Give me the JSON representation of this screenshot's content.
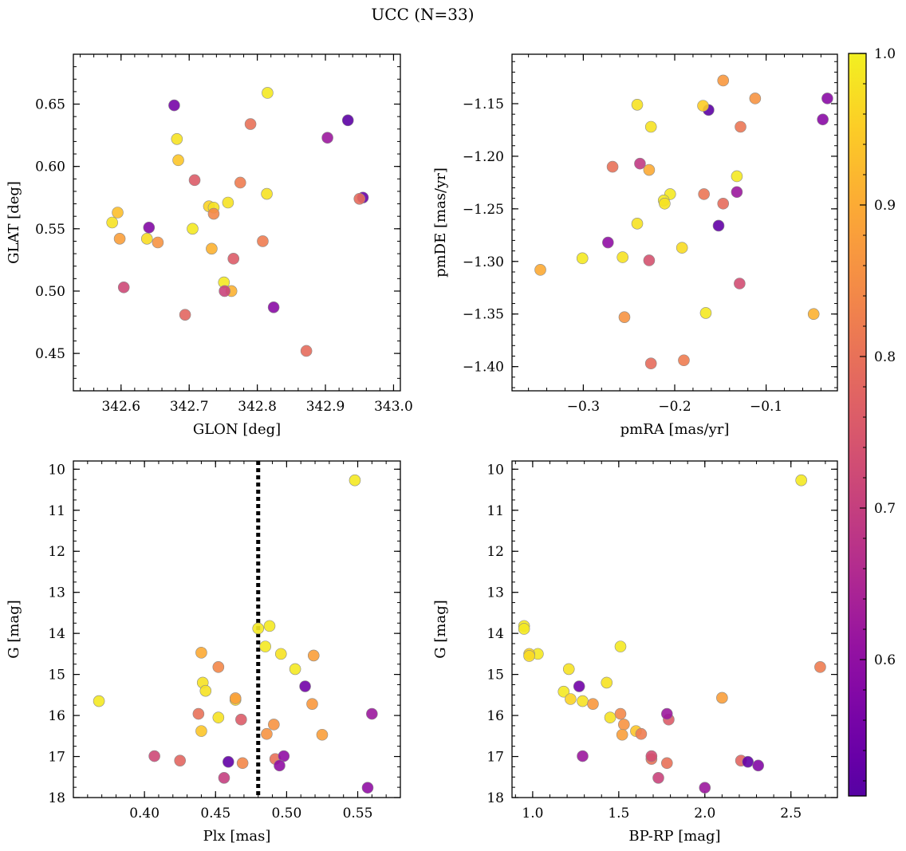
{
  "figure": {
    "title": "UCC (N=33)"
  },
  "colorbar": {
    "range": [
      0.51,
      1.0
    ],
    "ticks": [
      0.6,
      0.7,
      0.8,
      0.9,
      1.0
    ],
    "tick_labels": [
      "0.6",
      "0.7",
      "0.8",
      "0.9",
      "1.0"
    ],
    "colormap": "plasma",
    "colormap_range": [
      0.15,
      0.98
    ]
  },
  "chart_data": [
    {
      "type": "scatter",
      "id": "glon-glat",
      "xlabel": "GLON [deg]",
      "ylabel": "GLAT [deg]",
      "xlim": [
        342.53,
        343.01
      ],
      "ylim": [
        0.42,
        0.69
      ],
      "y_inverted": false,
      "xticks": [
        342.6,
        342.7,
        342.8,
        342.9,
        343.0
      ],
      "xtick_labels": [
        "342.6",
        "342.7",
        "342.8",
        "342.9",
        "343.0"
      ],
      "yticks": [
        0.45,
        0.5,
        0.55,
        0.6,
        0.65
      ],
      "ytick_labels": [
        "0.45",
        "0.50",
        "0.55",
        "0.60",
        "0.65"
      ],
      "grid": false,
      "points": [
        {
          "x": 342.678,
          "y": 0.649,
          "c": 0.56
        },
        {
          "x": 342.933,
          "y": 0.637,
          "c": 0.52
        },
        {
          "x": 342.955,
          "y": 0.575,
          "c": 0.54
        },
        {
          "x": 342.903,
          "y": 0.623,
          "c": 0.62
        },
        {
          "x": 342.641,
          "y": 0.551,
          "c": 0.58
        },
        {
          "x": 342.824,
          "y": 0.487,
          "c": 0.59
        },
        {
          "x": 342.815,
          "y": 0.659,
          "c": 0.99
        },
        {
          "x": 342.682,
          "y": 0.622,
          "c": 0.98
        },
        {
          "x": 342.684,
          "y": 0.605,
          "c": 0.94
        },
        {
          "x": 342.814,
          "y": 0.578,
          "c": 0.98
        },
        {
          "x": 342.587,
          "y": 0.555,
          "c": 0.98
        },
        {
          "x": 342.595,
          "y": 0.563,
          "c": 0.93
        },
        {
          "x": 342.638,
          "y": 0.542,
          "c": 0.97
        },
        {
          "x": 342.705,
          "y": 0.55,
          "c": 0.99
        },
        {
          "x": 342.729,
          "y": 0.568,
          "c": 0.96
        },
        {
          "x": 342.736,
          "y": 0.567,
          "c": 0.98
        },
        {
          "x": 342.757,
          "y": 0.571,
          "c": 0.98
        },
        {
          "x": 342.751,
          "y": 0.507,
          "c": 0.99
        },
        {
          "x": 342.598,
          "y": 0.542,
          "c": 0.88
        },
        {
          "x": 342.654,
          "y": 0.539,
          "c": 0.86
        },
        {
          "x": 342.733,
          "y": 0.534,
          "c": 0.91
        },
        {
          "x": 342.762,
          "y": 0.5,
          "c": 0.91
        },
        {
          "x": 342.736,
          "y": 0.562,
          "c": 0.84
        },
        {
          "x": 342.775,
          "y": 0.587,
          "c": 0.82
        },
        {
          "x": 342.808,
          "y": 0.54,
          "c": 0.82
        },
        {
          "x": 342.79,
          "y": 0.634,
          "c": 0.8
        },
        {
          "x": 342.95,
          "y": 0.574,
          "c": 0.79
        },
        {
          "x": 342.872,
          "y": 0.452,
          "c": 0.79
        },
        {
          "x": 342.694,
          "y": 0.481,
          "c": 0.78
        },
        {
          "x": 342.708,
          "y": 0.589,
          "c": 0.76
        },
        {
          "x": 342.765,
          "y": 0.526,
          "c": 0.76
        },
        {
          "x": 342.604,
          "y": 0.503,
          "c": 0.72
        },
        {
          "x": 342.752,
          "y": 0.5,
          "c": 0.71
        }
      ]
    },
    {
      "type": "scatter",
      "id": "pmra-pmde",
      "xlabel": "pmRA [mas/yr]",
      "ylabel": "pmDE [mas/yr]",
      "xlim": [
        -0.378,
        -0.022
      ],
      "ylim": [
        -1.423,
        -1.103
      ],
      "y_inverted": false,
      "xticks": [
        -0.3,
        -0.2,
        -0.1
      ],
      "xtick_labels": [
        "−0.3",
        "−0.2",
        "−0.1"
      ],
      "yticks": [
        -1.4,
        -1.35,
        -1.3,
        -1.25,
        -1.2,
        -1.15
      ],
      "ytick_labels": [
        "−1.40",
        "−1.35",
        "−1.30",
        "−1.25",
        "−1.20",
        "−1.15"
      ],
      "grid": false,
      "points": [
        {
          "x": -0.163,
          "y": -1.156,
          "c": 0.52
        },
        {
          "x": -0.152,
          "y": -1.266,
          "c": 0.53
        },
        {
          "x": -0.033,
          "y": -1.145,
          "c": 0.59
        },
        {
          "x": -0.038,
          "y": -1.165,
          "c": 0.59
        },
        {
          "x": -0.132,
          "y": -1.234,
          "c": 0.62
        },
        {
          "x": -0.273,
          "y": -1.282,
          "c": 0.6
        },
        {
          "x": -0.241,
          "y": -1.151,
          "c": 0.98
        },
        {
          "x": -0.226,
          "y": -1.172,
          "c": 0.98
        },
        {
          "x": -0.169,
          "y": -1.152,
          "c": 0.95
        },
        {
          "x": -0.132,
          "y": -1.219,
          "c": 0.99
        },
        {
          "x": -0.205,
          "y": -1.236,
          "c": 0.99
        },
        {
          "x": -0.212,
          "y": -1.242,
          "c": 0.99
        },
        {
          "x": -0.211,
          "y": -1.245,
          "c": 0.98
        },
        {
          "x": -0.241,
          "y": -1.264,
          "c": 0.98
        },
        {
          "x": -0.301,
          "y": -1.297,
          "c": 0.99
        },
        {
          "x": -0.257,
          "y": -1.296,
          "c": 0.98
        },
        {
          "x": -0.192,
          "y": -1.287,
          "c": 0.97
        },
        {
          "x": -0.166,
          "y": -1.349,
          "c": 0.99
        },
        {
          "x": -0.347,
          "y": -1.308,
          "c": 0.9
        },
        {
          "x": -0.228,
          "y": -1.213,
          "c": 0.9
        },
        {
          "x": -0.147,
          "y": -1.128,
          "c": 0.87
        },
        {
          "x": -0.112,
          "y": -1.145,
          "c": 0.86
        },
        {
          "x": -0.048,
          "y": -1.35,
          "c": 0.91
        },
        {
          "x": -0.255,
          "y": -1.353,
          "c": 0.86
        },
        {
          "x": -0.268,
          "y": -1.21,
          "c": 0.8
        },
        {
          "x": -0.168,
          "y": -1.236,
          "c": 0.81
        },
        {
          "x": -0.147,
          "y": -1.245,
          "c": 0.79
        },
        {
          "x": -0.128,
          "y": -1.172,
          "c": 0.81
        },
        {
          "x": -0.19,
          "y": -1.394,
          "c": 0.82
        },
        {
          "x": -0.226,
          "y": -1.397,
          "c": 0.79
        },
        {
          "x": -0.228,
          "y": -1.299,
          "c": 0.74
        },
        {
          "x": -0.129,
          "y": -1.321,
          "c": 0.73
        },
        {
          "x": -0.238,
          "y": -1.207,
          "c": 0.69
        }
      ]
    },
    {
      "type": "scatter",
      "id": "plx-g",
      "xlabel": "Plx [mas]",
      "ylabel": "G [mag]",
      "xlim": [
        0.35,
        0.58
      ],
      "ylim": [
        18.0,
        9.8
      ],
      "y_inverted": true,
      "xticks": [
        0.4,
        0.45,
        0.5,
        0.55
      ],
      "xtick_labels": [
        "0.40",
        "0.45",
        "0.50",
        "0.55"
      ],
      "yticks": [
        10,
        11,
        12,
        13,
        14,
        15,
        16,
        17,
        18
      ],
      "ytick_labels": [
        "10",
        "11",
        "12",
        "13",
        "14",
        "15",
        "16",
        "17",
        "18"
      ],
      "grid": false,
      "reference_line": {
        "x": 0.48,
        "style": "dotted",
        "color": "#000000"
      },
      "points": [
        {
          "x": 0.548,
          "y": 10.27,
          "c": 0.99
        },
        {
          "x": 0.368,
          "y": 15.65,
          "c": 0.99
        },
        {
          "x": 0.48,
          "y": 13.88,
          "c": 0.99
        },
        {
          "x": 0.488,
          "y": 13.82,
          "c": 0.99
        },
        {
          "x": 0.485,
          "y": 14.32,
          "c": 0.99
        },
        {
          "x": 0.496,
          "y": 14.5,
          "c": 0.98
        },
        {
          "x": 0.506,
          "y": 14.87,
          "c": 0.99
        },
        {
          "x": 0.441,
          "y": 15.2,
          "c": 0.98
        },
        {
          "x": 0.443,
          "y": 15.4,
          "c": 0.98
        },
        {
          "x": 0.452,
          "y": 16.05,
          "c": 0.98
        },
        {
          "x": 0.464,
          "y": 15.62,
          "c": 0.96
        },
        {
          "x": 0.44,
          "y": 16.38,
          "c": 0.94
        },
        {
          "x": 0.44,
          "y": 14.47,
          "c": 0.9
        },
        {
          "x": 0.464,
          "y": 15.58,
          "c": 0.88
        },
        {
          "x": 0.519,
          "y": 14.54,
          "c": 0.88
        },
        {
          "x": 0.525,
          "y": 16.47,
          "c": 0.88
        },
        {
          "x": 0.518,
          "y": 15.72,
          "c": 0.87
        },
        {
          "x": 0.452,
          "y": 14.82,
          "c": 0.84
        },
        {
          "x": 0.491,
          "y": 16.22,
          "c": 0.86
        },
        {
          "x": 0.486,
          "y": 16.45,
          "c": 0.86
        },
        {
          "x": 0.438,
          "y": 15.96,
          "c": 0.8
        },
        {
          "x": 0.469,
          "y": 17.16,
          "c": 0.84
        },
        {
          "x": 0.492,
          "y": 17.06,
          "c": 0.8
        },
        {
          "x": 0.425,
          "y": 17.1,
          "c": 0.78
        },
        {
          "x": 0.468,
          "y": 16.1,
          "c": 0.76
        },
        {
          "x": 0.407,
          "y": 16.99,
          "c": 0.72
        },
        {
          "x": 0.456,
          "y": 17.52,
          "c": 0.7
        },
        {
          "x": 0.513,
          "y": 15.29,
          "c": 0.55
        },
        {
          "x": 0.459,
          "y": 17.13,
          "c": 0.53
        },
        {
          "x": 0.498,
          "y": 16.99,
          "c": 0.6
        },
        {
          "x": 0.495,
          "y": 17.22,
          "c": 0.6
        },
        {
          "x": 0.56,
          "y": 15.96,
          "c": 0.62
        },
        {
          "x": 0.557,
          "y": 17.76,
          "c": 0.6
        }
      ]
    },
    {
      "type": "scatter",
      "id": "bprp-g",
      "xlabel": "BP-RP [mag]",
      "ylabel": "G [mag]",
      "xlim": [
        0.88,
        2.77
      ],
      "ylim": [
        18.0,
        9.8
      ],
      "y_inverted": true,
      "xticks": [
        1.0,
        1.5,
        2.0,
        2.5
      ],
      "xtick_labels": [
        "1.0",
        "1.5",
        "2.0",
        "2.5"
      ],
      "yticks": [
        10,
        11,
        12,
        13,
        14,
        15,
        16,
        17,
        18
      ],
      "ytick_labels": [
        "10",
        "11",
        "12",
        "13",
        "14",
        "15",
        "16",
        "17",
        "18"
      ],
      "grid": false,
      "points": [
        {
          "x": 2.56,
          "y": 10.27,
          "c": 0.99
        },
        {
          "x": 0.95,
          "y": 13.82,
          "c": 0.99
        },
        {
          "x": 0.95,
          "y": 13.89,
          "c": 0.99
        },
        {
          "x": 1.51,
          "y": 14.32,
          "c": 0.99
        },
        {
          "x": 1.03,
          "y": 14.5,
          "c": 0.99
        },
        {
          "x": 0.98,
          "y": 14.5,
          "c": 0.96
        },
        {
          "x": 0.98,
          "y": 14.55,
          "c": 0.97
        },
        {
          "x": 1.21,
          "y": 14.87,
          "c": 0.98
        },
        {
          "x": 1.18,
          "y": 15.42,
          "c": 0.99
        },
        {
          "x": 1.43,
          "y": 15.2,
          "c": 0.98
        },
        {
          "x": 1.22,
          "y": 15.6,
          "c": 0.96
        },
        {
          "x": 1.29,
          "y": 15.65,
          "c": 0.98
        },
        {
          "x": 1.45,
          "y": 16.05,
          "c": 0.98
        },
        {
          "x": 1.6,
          "y": 16.38,
          "c": 0.94
        },
        {
          "x": 2.1,
          "y": 15.57,
          "c": 0.88
        },
        {
          "x": 1.35,
          "y": 15.72,
          "c": 0.87
        },
        {
          "x": 1.51,
          "y": 15.96,
          "c": 0.84
        },
        {
          "x": 1.53,
          "y": 16.22,
          "c": 0.86
        },
        {
          "x": 1.52,
          "y": 16.47,
          "c": 0.88
        },
        {
          "x": 1.63,
          "y": 16.45,
          "c": 0.82
        },
        {
          "x": 2.67,
          "y": 14.82,
          "c": 0.82
        },
        {
          "x": 1.69,
          "y": 17.06,
          "c": 0.8
        },
        {
          "x": 1.78,
          "y": 17.16,
          "c": 0.8
        },
        {
          "x": 2.21,
          "y": 17.1,
          "c": 0.78
        },
        {
          "x": 1.79,
          "y": 16.1,
          "c": 0.76
        },
        {
          "x": 1.69,
          "y": 16.99,
          "c": 0.73
        },
        {
          "x": 1.73,
          "y": 17.52,
          "c": 0.71
        },
        {
          "x": 1.27,
          "y": 15.29,
          "c": 0.55
        },
        {
          "x": 2.25,
          "y": 17.13,
          "c": 0.53
        },
        {
          "x": 2.31,
          "y": 17.22,
          "c": 0.58
        },
        {
          "x": 1.78,
          "y": 15.96,
          "c": 0.62
        },
        {
          "x": 1.29,
          "y": 16.99,
          "c": 0.62
        },
        {
          "x": 2.0,
          "y": 17.76,
          "c": 0.62
        }
      ]
    }
  ]
}
